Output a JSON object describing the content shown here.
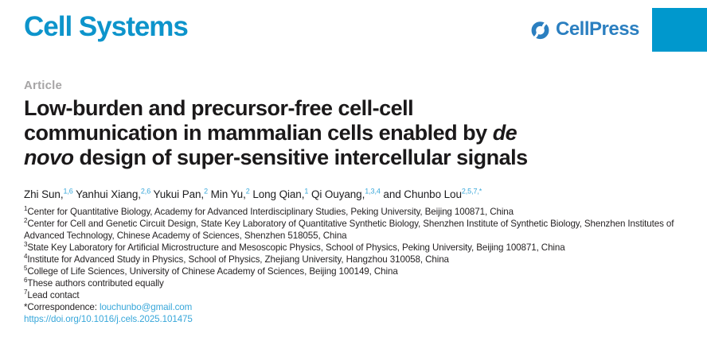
{
  "colors": {
    "brand_cyan": "#0d94cb",
    "cellpress_blue": "#2b7fc0",
    "band_cyan": "#0098cd",
    "article_gray": "#a7a5a6",
    "link_blue": "#38a7da"
  },
  "masthead": {
    "journal": "Cell Systems",
    "publisher": "CellPress",
    "publisher_icon": "cellpress-chain-icon"
  },
  "article": {
    "kicker": "Article",
    "title_part1": "Low-burden and precursor-free cell-cell communication in mammalian cells enabled by ",
    "title_italic": "de novo",
    "title_part2": " design of super-sensitive intercellular signals",
    "authors": [
      {
        "name": "Zhi Sun,",
        "sup": "1,6"
      },
      {
        "name": "Yanhui Xiang,",
        "sup": "2,6"
      },
      {
        "name": "Yukui Pan,",
        "sup": "2"
      },
      {
        "name": "Min Yu,",
        "sup": "2"
      },
      {
        "name": "Long Qian,",
        "sup": "1"
      },
      {
        "name": "Qi Ouyang,",
        "sup": "1,3,4"
      },
      {
        "name": "and Chunbo Lou",
        "sup": "2,5,7,*"
      }
    ],
    "affiliations": [
      {
        "sup": "1",
        "text": "Center for Quantitative Biology, Academy for Advanced Interdisciplinary Studies, Peking University, Beijing 100871, China"
      },
      {
        "sup": "2",
        "text": "Center for Cell and Genetic Circuit Design, State Key Laboratory of Quantitative Synthetic Biology, Shenzhen Institute of Synthetic Biology, Shenzhen Institutes of Advanced Technology, Chinese Academy of Sciences, Shenzhen 518055, China"
      },
      {
        "sup": "3",
        "text": "State Key Laboratory for Artificial Microstructure and Mesoscopic Physics, School of Physics, Peking University, Beijing 100871, China"
      },
      {
        "sup": "4",
        "text": "Institute for Advanced Study in Physics, School of Physics, Zhejiang University, Hangzhou 310058, China"
      },
      {
        "sup": "5",
        "text": "College of Life Sciences, University of Chinese Academy of Sciences, Beijing 100149, China"
      },
      {
        "sup": "6",
        "text": "These authors contributed equally"
      },
      {
        "sup": "7",
        "text": "Lead contact"
      }
    ],
    "correspondence_label": "*Correspondence: ",
    "correspondence_email": "louchunbo@gmail.com",
    "doi": "https://doi.org/10.1016/j.cels.2025.101475"
  }
}
